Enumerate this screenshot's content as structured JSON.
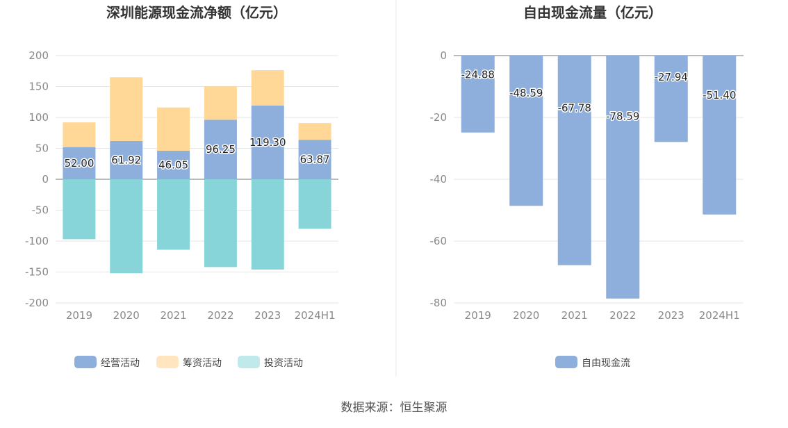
{
  "source_text": "数据来源：恒生聚源",
  "chart_data": [
    {
      "type": "bar",
      "stacked": true,
      "title": "深圳能源现金流净额（亿元）",
      "categories": [
        "2019",
        "2020",
        "2021",
        "2022",
        "2023",
        "2024H1"
      ],
      "ylim": [
        -200,
        200
      ],
      "yticks": [
        200,
        150,
        100,
        50,
        0,
        -50,
        -100,
        -150,
        -200
      ],
      "grid": true,
      "legend_position": "bottom",
      "series": [
        {
          "name": "经营活动",
          "color": "#8eaedb",
          "values": [
            52.0,
            61.92,
            46.05,
            96.25,
            119.3,
            63.87
          ],
          "labels": [
            "52.00",
            "61.92",
            "46.05",
            "96.25",
            "119.30",
            "63.87"
          ]
        },
        {
          "name": "筹资活动",
          "color": "#ffd898",
          "values": [
            40,
            103,
            70,
            54,
            57,
            27
          ]
        },
        {
          "name": "投资活动",
          "color": "#87d5d9",
          "values": [
            -97,
            -152,
            -114,
            -142,
            -146,
            -80
          ]
        }
      ],
      "legend_colors": [
        "#8eaedb",
        "#ffe6c0",
        "#bfe9eb"
      ]
    },
    {
      "type": "bar",
      "title": "自由现金流量（亿元）",
      "categories": [
        "2019",
        "2020",
        "2021",
        "2022",
        "2023",
        "2024H1"
      ],
      "ylim": [
        -80,
        0
      ],
      "yticks": [
        0,
        -20,
        -40,
        -60,
        -80
      ],
      "grid": true,
      "legend_position": "bottom",
      "series": [
        {
          "name": "自由现金流",
          "color": "#8eaedb",
          "values": [
            -24.88,
            -48.59,
            -67.78,
            -78.59,
            -27.94,
            -51.4
          ],
          "labels": [
            "-24.88",
            "-48.59",
            "-67.78",
            "-78.59",
            "-27.94",
            "-51.40"
          ]
        }
      ]
    }
  ]
}
